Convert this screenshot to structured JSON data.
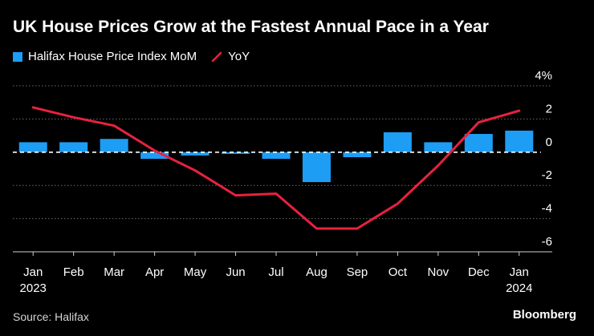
{
  "chart_data": {
    "type": "bar",
    "title": "UK House Prices Grow at the Fastest Annual Pace in a Year",
    "source": "Source: Halifax",
    "brand": "Bloomberg",
    "categories": [
      "Jan",
      "Feb",
      "Mar",
      "Apr",
      "May",
      "Jun",
      "Jul",
      "Aug",
      "Sep",
      "Oct",
      "Nov",
      "Dec",
      "Jan"
    ],
    "year_labels": [
      "2023",
      "",
      "",
      "",
      "",
      "",
      "",
      "",
      "",
      "",
      "",
      "",
      "2024"
    ],
    "series": [
      {
        "name": "Halifax House Price Index MoM",
        "type": "bar",
        "color": "#1e9df5",
        "values": [
          0.6,
          0.6,
          0.8,
          -0.4,
          -0.2,
          -0.1,
          -0.4,
          -1.8,
          -0.3,
          1.2,
          0.6,
          1.1,
          1.3
        ]
      },
      {
        "name": "YoY",
        "type": "line",
        "color": "#e8213f",
        "values": [
          2.7,
          2.1,
          1.6,
          0.1,
          -1.1,
          -2.6,
          -2.5,
          -4.6,
          -4.6,
          -3.1,
          -0.8,
          1.8,
          2.5
        ]
      }
    ],
    "yticks": [
      {
        "value": 4,
        "label": "4%"
      },
      {
        "value": 2,
        "label": "2"
      },
      {
        "value": 0,
        "label": "0"
      },
      {
        "value": -2,
        "label": "-2"
      },
      {
        "value": -4,
        "label": "-4"
      },
      {
        "value": -6,
        "label": "-6"
      }
    ],
    "ylim": [
      -6,
      4
    ],
    "y_axis_side": "right",
    "grid": true,
    "legend_position": "top-left"
  }
}
